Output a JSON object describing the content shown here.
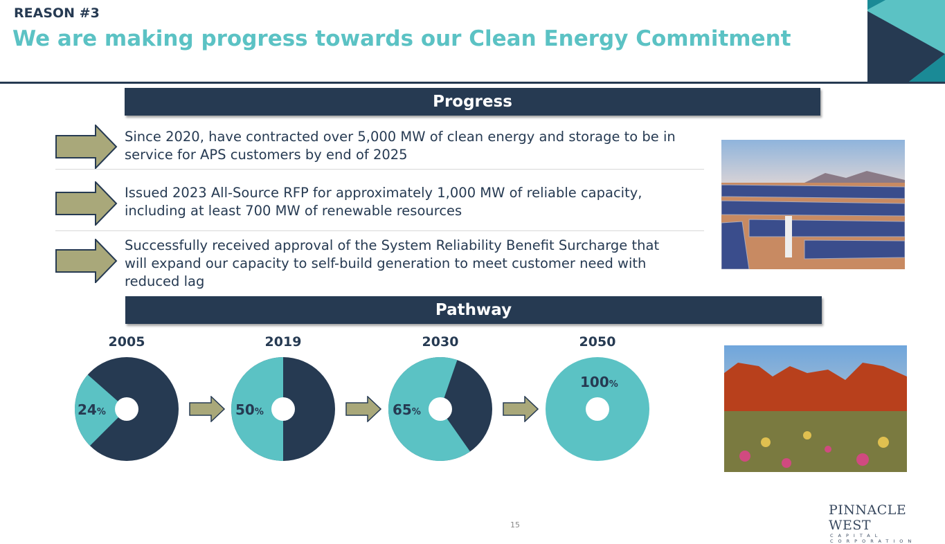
{
  "header": {
    "reason": "REASON #3",
    "title": "We are making progress towards our Clean Energy Commitment"
  },
  "progress": {
    "label": "Progress",
    "items": [
      "Since 2020, have contracted over 5,000 MW of clean energy and storage to be in service for APS customers by end of 2025",
      "Issued 2023 All-Source RFP for approximately 1,000 MW of reliable capacity, including at least 700 MW of renewable resources",
      "Successfully received approval of the System Reliability Benefit Surcharge that will expand our capacity to self-build generation to meet customer need with reduced lag"
    ]
  },
  "pathway": {
    "label": "Pathway",
    "items": [
      {
        "year": "2005",
        "value": "24",
        "unit": "%",
        "percent": 24
      },
      {
        "year": "2019",
        "value": "50",
        "unit": "%",
        "percent": 50
      },
      {
        "year": "2030",
        "value": "65",
        "unit": "%",
        "percent": 65
      },
      {
        "year": "2050",
        "value": "100",
        "unit": "%",
        "percent": 100
      }
    ]
  },
  "colors": {
    "navy": "#263a52",
    "teal": "#5bc2c4",
    "arrow": "#a9a87a"
  },
  "footer": {
    "page": "15",
    "logo": "PINNACLE WEST CAPITAL CORPORATION"
  }
}
